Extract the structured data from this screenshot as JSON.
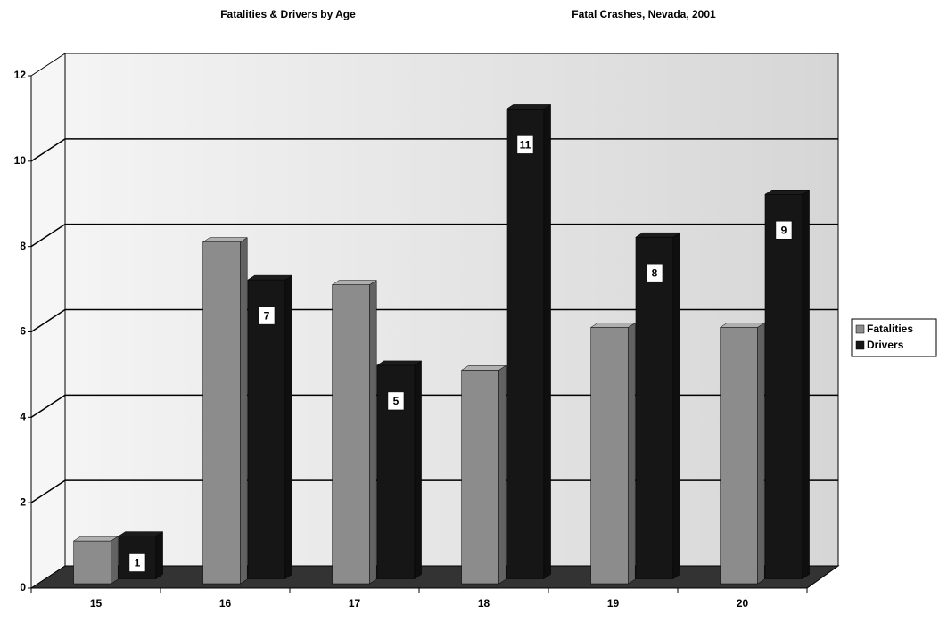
{
  "chart_data": {
    "type": "bar3d",
    "title": "Fatalities & Drivers by Age",
    "subtitle": "Fatal Crashes, Nevada, 2001",
    "categories": [
      "15",
      "16",
      "17",
      "18",
      "19",
      "20"
    ],
    "series": [
      {
        "name": "Fatalities",
        "color": "#8c8c8c",
        "values": [
          1,
          8,
          7,
          5,
          6,
          6
        ],
        "show_labels": false
      },
      {
        "name": "Drivers",
        "color": "#161616",
        "values": [
          1,
          7,
          5,
          11,
          8,
          9
        ],
        "show_labels": true
      }
    ],
    "ylim": [
      0,
      12
    ],
    "yticks": [
      0,
      2,
      4,
      6,
      8,
      10,
      12
    ],
    "grid": true,
    "legend": "right"
  }
}
